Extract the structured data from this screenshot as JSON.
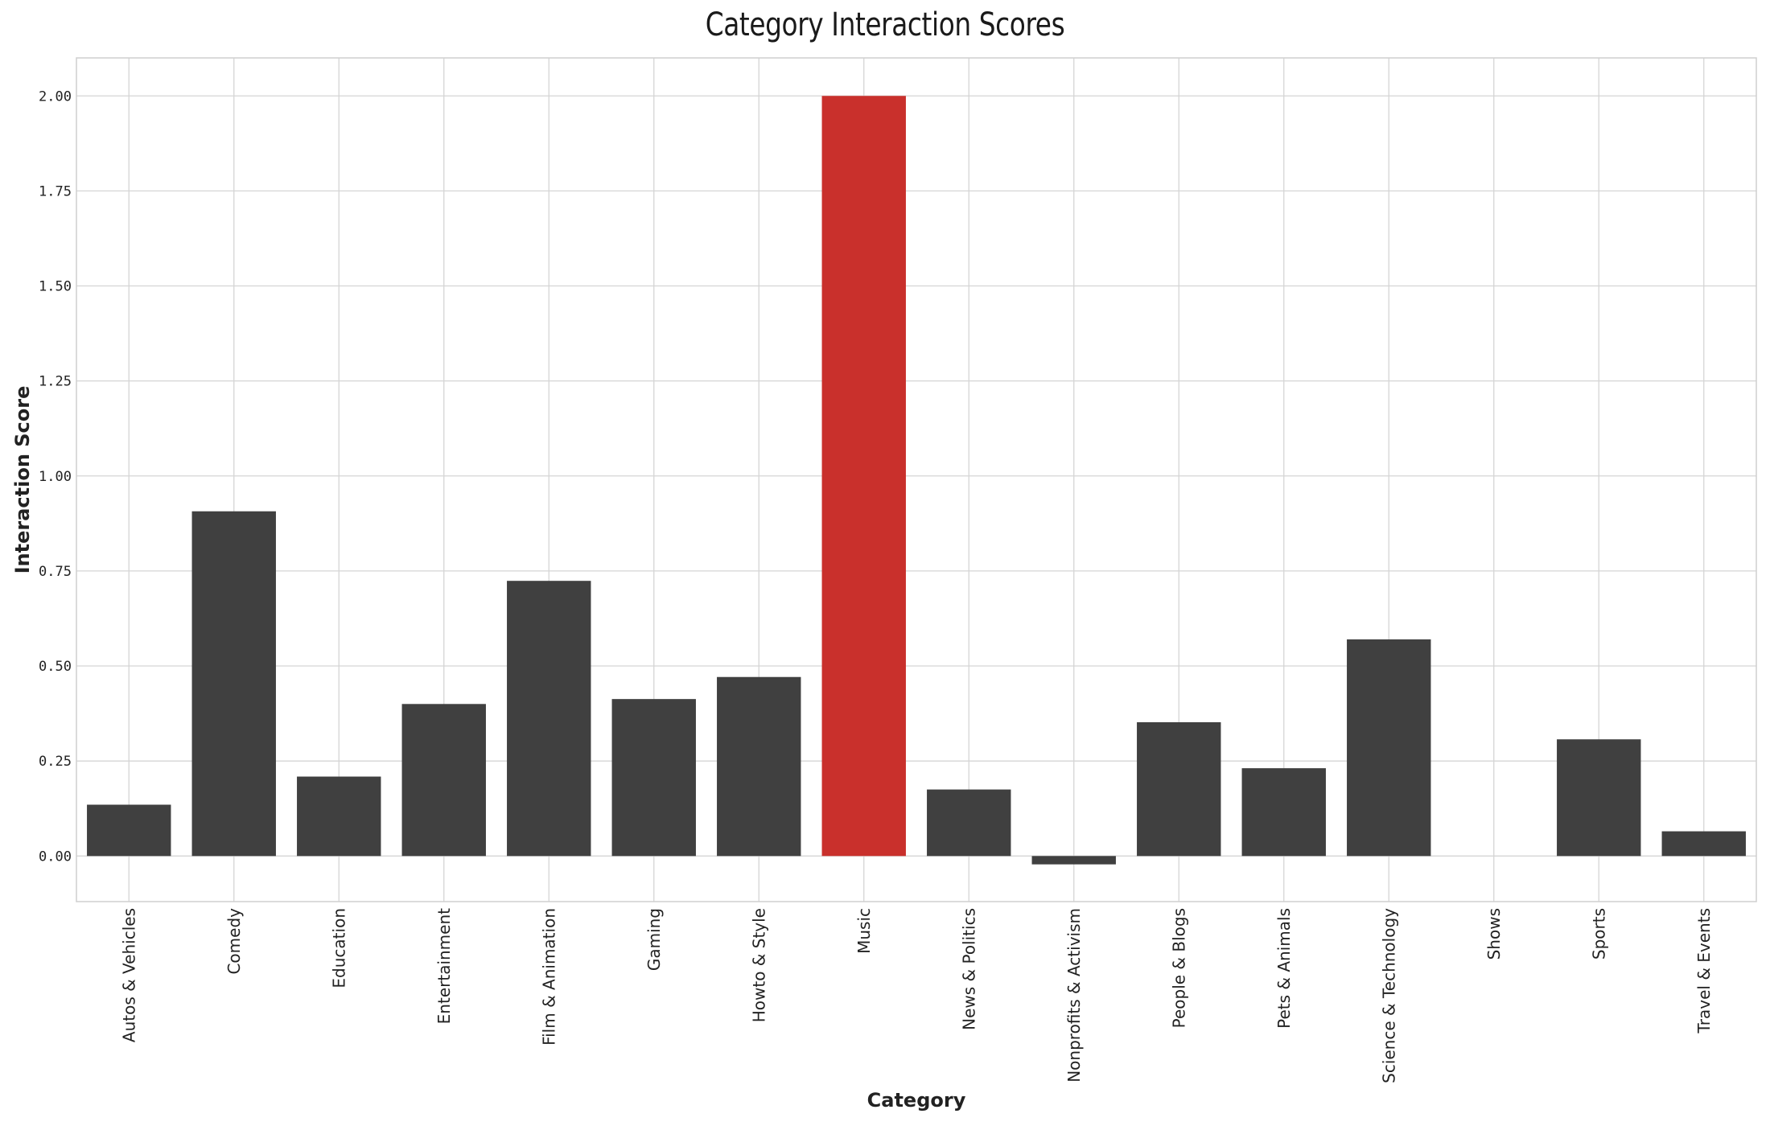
{
  "chart_data": {
    "type": "bar",
    "title": "Category Interaction Scores",
    "xlabel": "Category",
    "ylabel": "Interaction Score",
    "categories": [
      "Autos & Vehicles",
      "Comedy",
      "Education",
      "Entertainment",
      "Film & Animation",
      "Gaming",
      "Howto & Style",
      "Music",
      "News & Politics",
      "Nonprofits & Activism",
      "People & Blogs",
      "Pets & Animals",
      "Science & Technology",
      "Shows",
      "Sports",
      "Travel & Events"
    ],
    "values": [
      0.135,
      0.907,
      0.209,
      0.4,
      0.724,
      0.413,
      0.471,
      2.0,
      0.175,
      -0.022,
      0.352,
      0.231,
      0.57,
      0.0,
      0.307,
      0.065
    ],
    "highlight_index": 7,
    "ylim": [
      -0.12,
      2.1
    ],
    "yticks": [
      "0.00",
      "0.25",
      "0.50",
      "0.75",
      "1.00",
      "1.25",
      "1.50",
      "1.75",
      "2.00"
    ],
    "grid": true,
    "colors": {
      "bar": "#404040",
      "highlight": "#c9302c",
      "grid": "#d5d5d5"
    }
  }
}
